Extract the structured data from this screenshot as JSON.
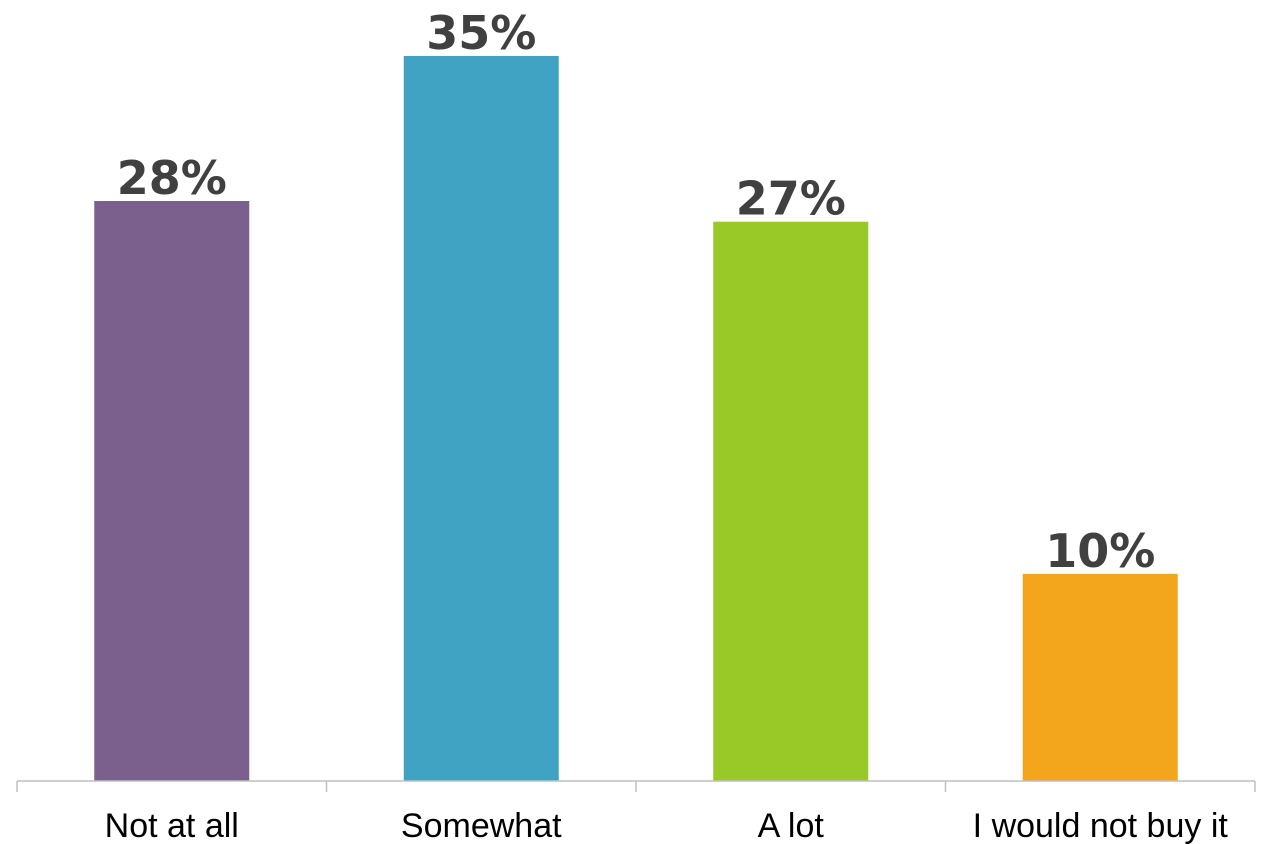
{
  "chart_data": {
    "type": "bar",
    "categories": [
      "Not at all",
      "Somewhat",
      "A lot",
      "I would not buy it"
    ],
    "values": [
      28,
      35,
      27,
      10
    ],
    "data_labels": [
      "28%",
      "35%",
      "27%",
      "10%"
    ],
    "colors": [
      "#7b608e",
      "#41a3c4",
      "#98c926",
      "#f3a51b"
    ],
    "ylim": [
      0,
      35
    ],
    "grid": false,
    "legend": "none"
  }
}
